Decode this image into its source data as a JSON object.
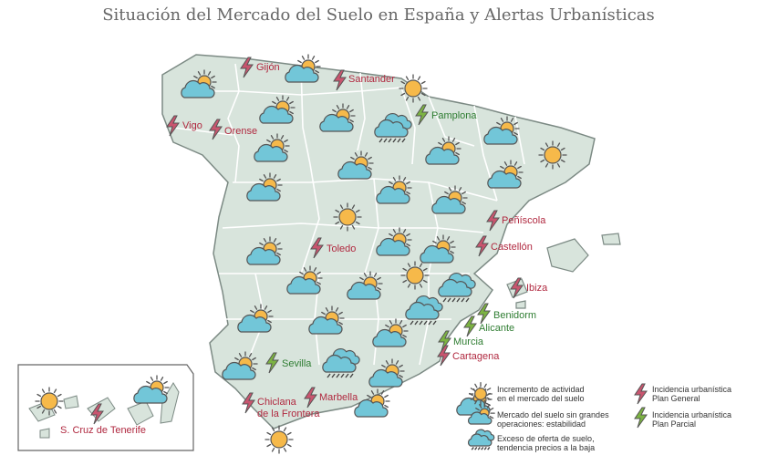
{
  "title": "Situación del Mercado del Suelo en España y Alertas Urbanísticas",
  "colors": {
    "land": "#d8e4dc",
    "border": "#ffffff",
    "outline": "#7c8a84",
    "sun": "#f6b94a",
    "cloud": "#72c6d8",
    "general_bolt": "#c9556f",
    "parcial_bolt": "#7cb342",
    "label_general": "#b0283f",
    "label_parcial": "#2f7d32"
  },
  "markers": [
    {
      "type": "cloud_sun"
    },
    {
      "type": "cloud_sun"
    },
    {
      "type": "sun"
    },
    {
      "type": "cloud_sun"
    },
    {
      "type": "cloud_sun"
    },
    {
      "type": "storm"
    },
    {
      "type": "cloud_sun"
    },
    {
      "type": "cloud_sun"
    },
    {
      "type": "sun"
    },
    {
      "type": "cloud_sun"
    },
    {
      "type": "cloud_sun"
    },
    {
      "type": "cloud_sun"
    },
    {
      "type": "cloud_sun"
    },
    {
      "type": "cloud_sun"
    },
    {
      "type": "cloud_sun"
    },
    {
      "type": "sun"
    },
    {
      "type": "cloud_sun"
    },
    {
      "type": "cloud_sun"
    },
    {
      "type": "cloud_sun"
    },
    {
      "type": "cloud_sun"
    },
    {
      "type": "sun"
    },
    {
      "type": "cloud_sun"
    },
    {
      "type": "cloud_sun"
    },
    {
      "type": "storm"
    },
    {
      "type": "storm"
    },
    {
      "type": "cloud_sun"
    },
    {
      "type": "cloud_sun"
    },
    {
      "type": "storm"
    },
    {
      "type": "cloud_sun"
    },
    {
      "type": "cloud_sun"
    },
    {
      "type": "cloud_sun"
    },
    {
      "type": "sun"
    },
    {
      "type": "sun"
    },
    {
      "type": "cloud_sun"
    },
    {
      "type": "cloud_sun"
    }
  ],
  "alerts": [
    {
      "name": "Gijón",
      "kind": "general"
    },
    {
      "name": "Santander",
      "kind": "general"
    },
    {
      "name": "Pamplona",
      "kind": "parcial"
    },
    {
      "name": "Vigo",
      "kind": "general"
    },
    {
      "name": "Orense",
      "kind": "general"
    },
    {
      "name": "Peñíscola",
      "kind": "general"
    },
    {
      "name": "Castellón",
      "kind": "general"
    },
    {
      "name": "Toledo",
      "kind": "general"
    },
    {
      "name": "Ibiza",
      "kind": "general"
    },
    {
      "name": "Benidorm",
      "kind": "parcial"
    },
    {
      "name": "Alicante",
      "kind": "parcial"
    },
    {
      "name": "Murcia",
      "kind": "parcial"
    },
    {
      "name": "Cartagena",
      "kind": "general"
    },
    {
      "name": "Sevilla",
      "kind": "parcial"
    },
    {
      "name": "Marbella",
      "kind": "general"
    },
    {
      "name": "Chiclana\nde la Frontera",
      "kind": "general"
    },
    {
      "name": "S. Cruz de Tenerife",
      "kind": "general"
    }
  ],
  "legend": {
    "sun": "Incremento de actividad\nen el mercado del suelo",
    "cloud_sun": "Mercado del suelo sin grandes\noperaciones: estabilidad",
    "storm": "Exceso de oferta de suelo,\ntendencia precios a la baja",
    "general": "Incidencia urbanística\nPlan General",
    "parcial": "Incidencia urbanística\nPlan Parcial"
  }
}
